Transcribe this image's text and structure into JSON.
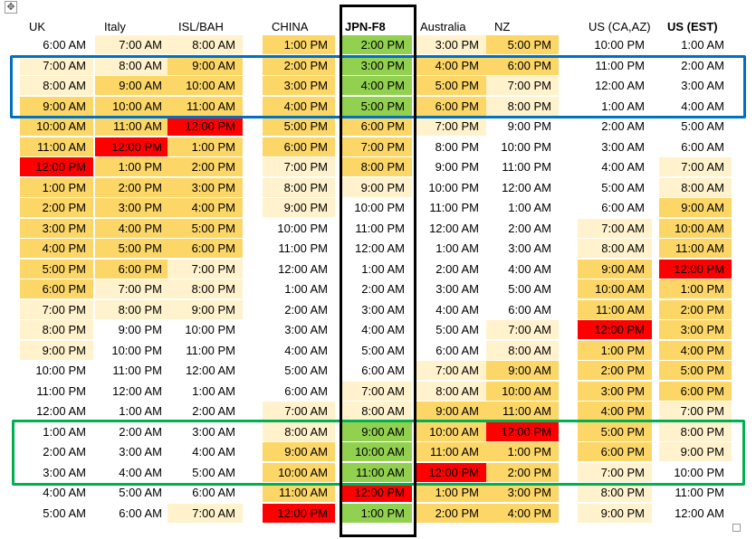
{
  "colors": {
    "dark": "#fcd667",
    "light": "#fff2cc",
    "green": "#92d050",
    "red": "#ff0000",
    "none": "#ffffff",
    "blue_box": "#0070c0",
    "green_box": "#00b050",
    "black_box": "#000000"
  },
  "icons": {
    "move_handle": "move-icon",
    "resize_handle": "resize-icon"
  },
  "table": {
    "headers": [
      "UK",
      "Italy",
      "ISL/BAH",
      "CHINA",
      "JPN-F8",
      "Australia",
      "NZ",
      "US (CA,AZ)",
      "US (EST)"
    ],
    "rows": [
      {
        "cells": [
          "6:00 AM",
          "7:00 AM",
          "8:00 AM",
          "1:00 PM",
          "2:00 PM",
          "3:00 PM",
          "5:00 PM",
          "10:00 PM",
          "1:00 AM"
        ],
        "fills": [
          "none",
          "light",
          "light",
          "dark",
          "green",
          "light",
          "dark",
          "none",
          "none"
        ]
      },
      {
        "cells": [
          "7:00 AM",
          "8:00 AM",
          "9:00 AM",
          "2:00 PM",
          "3:00 PM",
          "4:00 PM",
          "6:00 PM",
          "11:00 PM",
          "2:00 AM"
        ],
        "fills": [
          "light",
          "light",
          "dark",
          "dark",
          "green",
          "dark",
          "dark",
          "none",
          "none"
        ]
      },
      {
        "cells": [
          "8:00 AM",
          "9:00 AM",
          "10:00 AM",
          "3:00 PM",
          "4:00 PM",
          "5:00 PM",
          "7:00 PM",
          "12:00 AM",
          "3:00 AM"
        ],
        "fills": [
          "light",
          "dark",
          "dark",
          "dark",
          "green",
          "dark",
          "light",
          "none",
          "none"
        ]
      },
      {
        "cells": [
          "9:00 AM",
          "10:00 AM",
          "11:00 AM",
          "4:00 PM",
          "5:00 PM",
          "6:00 PM",
          "8:00 PM",
          "1:00 AM",
          "4:00 AM"
        ],
        "fills": [
          "dark",
          "dark",
          "dark",
          "dark",
          "green",
          "dark",
          "light",
          "none",
          "none"
        ]
      },
      {
        "cells": [
          "10:00 AM",
          "11:00 AM",
          "12:00 PM",
          "5:00 PM",
          "6:00 PM",
          "7:00 PM",
          "9:00 PM",
          "2:00 AM",
          "5:00 AM"
        ],
        "fills": [
          "dark",
          "dark",
          "red",
          "dark",
          "dark",
          "light",
          "none",
          "none",
          "none"
        ]
      },
      {
        "cells": [
          "11:00 AM",
          "12:00 PM",
          "1:00 PM",
          "6:00 PM",
          "7:00 PM",
          "8:00 PM",
          "10:00 PM",
          "3:00 AM",
          "6:00 AM"
        ],
        "fills": [
          "dark",
          "red",
          "dark",
          "dark",
          "dark",
          "none",
          "none",
          "none",
          "none"
        ]
      },
      {
        "cells": [
          "12:00 PM",
          "1:00 PM",
          "2:00 PM",
          "7:00 PM",
          "8:00 PM",
          "9:00 PM",
          "11:00 PM",
          "4:00 AM",
          "7:00 AM"
        ],
        "fills": [
          "red",
          "dark",
          "dark",
          "light",
          "dark",
          "none",
          "none",
          "none",
          "light"
        ]
      },
      {
        "cells": [
          "1:00 PM",
          "2:00 PM",
          "3:00 PM",
          "8:00 PM",
          "9:00 PM",
          "10:00 PM",
          "12:00 AM",
          "5:00 AM",
          "8:00 AM"
        ],
        "fills": [
          "dark",
          "dark",
          "dark",
          "light",
          "light",
          "none",
          "none",
          "none",
          "light"
        ]
      },
      {
        "cells": [
          "2:00 PM",
          "3:00 PM",
          "4:00 PM",
          "9:00 PM",
          "10:00 PM",
          "11:00 PM",
          "1:00 AM",
          "6:00 AM",
          "9:00 AM"
        ],
        "fills": [
          "dark",
          "dark",
          "dark",
          "light",
          "none",
          "none",
          "none",
          "none",
          "dark"
        ]
      },
      {
        "cells": [
          "3:00 PM",
          "4:00 PM",
          "5:00 PM",
          "10:00 PM",
          "11:00 PM",
          "12:00 AM",
          "2:00 AM",
          "7:00 AM",
          "10:00 AM"
        ],
        "fills": [
          "dark",
          "dark",
          "dark",
          "none",
          "none",
          "none",
          "none",
          "light",
          "dark"
        ]
      },
      {
        "cells": [
          "4:00 PM",
          "5:00 PM",
          "6:00 PM",
          "11:00 PM",
          "12:00 AM",
          "1:00 AM",
          "3:00 AM",
          "8:00 AM",
          "11:00 AM"
        ],
        "fills": [
          "dark",
          "dark",
          "dark",
          "none",
          "none",
          "none",
          "none",
          "light",
          "dark"
        ]
      },
      {
        "cells": [
          "5:00 PM",
          "6:00 PM",
          "7:00 PM",
          "12:00 AM",
          "1:00 AM",
          "2:00 AM",
          "4:00 AM",
          "9:00 AM",
          "12:00 PM"
        ],
        "fills": [
          "dark",
          "dark",
          "light",
          "none",
          "none",
          "none",
          "none",
          "dark",
          "red"
        ]
      },
      {
        "cells": [
          "6:00 PM",
          "7:00 PM",
          "8:00 PM",
          "1:00 AM",
          "2:00 AM",
          "3:00 AM",
          "5:00 AM",
          "10:00 AM",
          "1:00 PM"
        ],
        "fills": [
          "dark",
          "light",
          "light",
          "none",
          "none",
          "none",
          "none",
          "dark",
          "dark"
        ]
      },
      {
        "cells": [
          "7:00 PM",
          "8:00 PM",
          "9:00 PM",
          "2:00 AM",
          "3:00 AM",
          "4:00 AM",
          "6:00 AM",
          "11:00 AM",
          "2:00 PM"
        ],
        "fills": [
          "light",
          "light",
          "light",
          "none",
          "none",
          "none",
          "none",
          "dark",
          "dark"
        ]
      },
      {
        "cells": [
          "8:00 PM",
          "9:00 PM",
          "10:00 PM",
          "3:00 AM",
          "4:00 AM",
          "5:00 AM",
          "7:00 AM",
          "12:00 PM",
          "3:00 PM"
        ],
        "fills": [
          "light",
          "none",
          "none",
          "none",
          "none",
          "none",
          "light",
          "red",
          "dark"
        ]
      },
      {
        "cells": [
          "9:00 PM",
          "10:00 PM",
          "11:00 PM",
          "4:00 AM",
          "5:00 AM",
          "6:00 AM",
          "8:00 AM",
          "1:00 PM",
          "4:00 PM"
        ],
        "fills": [
          "light",
          "none",
          "none",
          "none",
          "none",
          "none",
          "light",
          "dark",
          "dark"
        ]
      },
      {
        "cells": [
          "10:00 PM",
          "11:00 PM",
          "12:00 AM",
          "5:00 AM",
          "6:00 AM",
          "7:00 AM",
          "9:00 AM",
          "2:00 PM",
          "5:00 PM"
        ],
        "fills": [
          "none",
          "none",
          "none",
          "none",
          "none",
          "light",
          "dark",
          "dark",
          "dark"
        ]
      },
      {
        "cells": [
          "11:00 PM",
          "12:00 AM",
          "1:00 AM",
          "6:00 AM",
          "7:00 AM",
          "8:00 AM",
          "10:00 AM",
          "3:00 PM",
          "6:00 PM"
        ],
        "fills": [
          "none",
          "none",
          "none",
          "none",
          "light",
          "light",
          "dark",
          "dark",
          "dark"
        ]
      },
      {
        "cells": [
          "12:00 AM",
          "1:00 AM",
          "2:00 AM",
          "7:00 AM",
          "8:00 AM",
          "9:00 AM",
          "11:00 AM",
          "4:00 PM",
          "7:00 PM"
        ],
        "fills": [
          "none",
          "none",
          "none",
          "light",
          "light",
          "dark",
          "dark",
          "dark",
          "light"
        ]
      },
      {
        "cells": [
          "1:00 AM",
          "2:00 AM",
          "3:00 AM",
          "8:00 AM",
          "9:00 AM",
          "10:00 AM",
          "12:00 PM",
          "5:00 PM",
          "8:00 PM"
        ],
        "fills": [
          "none",
          "none",
          "none",
          "light",
          "green",
          "dark",
          "red",
          "dark",
          "light"
        ]
      },
      {
        "cells": [
          "2:00 AM",
          "3:00 AM",
          "4:00 AM",
          "9:00 AM",
          "10:00 AM",
          "11:00 AM",
          "1:00 PM",
          "6:00 PM",
          "9:00 PM"
        ],
        "fills": [
          "none",
          "none",
          "none",
          "dark",
          "green",
          "dark",
          "dark",
          "dark",
          "light"
        ]
      },
      {
        "cells": [
          "3:00 AM",
          "4:00 AM",
          "5:00 AM",
          "10:00 AM",
          "11:00 AM",
          "12:00 PM",
          "2:00 PM",
          "7:00 PM",
          "10:00 PM"
        ],
        "fills": [
          "none",
          "none",
          "none",
          "dark",
          "green",
          "red",
          "dark",
          "light",
          "none"
        ]
      },
      {
        "cells": [
          "4:00 AM",
          "5:00 AM",
          "6:00 AM",
          "11:00 AM",
          "12:00 PM",
          "1:00 PM",
          "3:00 PM",
          "8:00 PM",
          "11:00 PM"
        ],
        "fills": [
          "none",
          "none",
          "none",
          "dark",
          "red",
          "dark",
          "dark",
          "light",
          "none"
        ]
      },
      {
        "cells": [
          "5:00 AM",
          "6:00 AM",
          "7:00 AM",
          "12:00 PM",
          "1:00 PM",
          "2:00 PM",
          "4:00 PM",
          "9:00 PM",
          "12:00 AM"
        ],
        "fills": [
          "none",
          "none",
          "light",
          "red",
          "green",
          "dark",
          "dark",
          "light",
          "none"
        ]
      }
    ]
  }
}
